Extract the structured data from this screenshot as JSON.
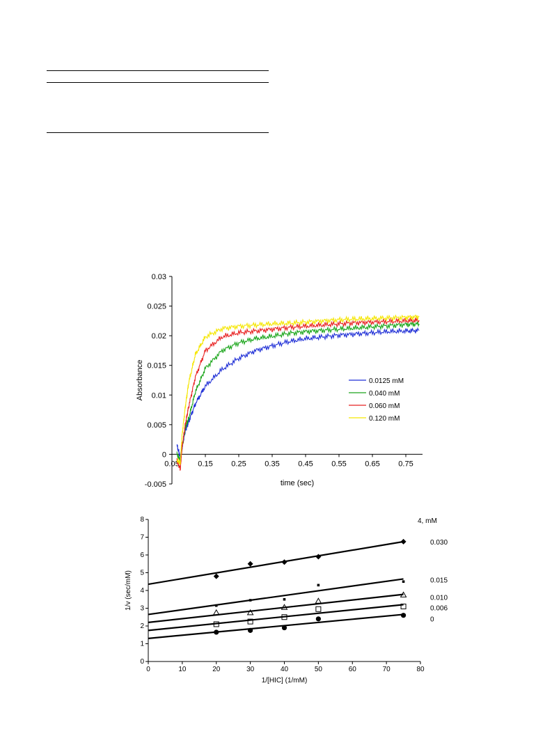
{
  "chart_data": [
    {
      "type": "line",
      "title": "",
      "xlabel": "time (sec)",
      "ylabel": "Absorbance",
      "xlim": [
        0.05,
        0.8
      ],
      "ylim": [
        -0.005,
        0.03
      ],
      "x_ticks": [
        "0.05",
        "0.15",
        "0.25",
        "0.35",
        "0.45",
        "0.55",
        "0.65",
        "0.75"
      ],
      "y_ticks": [
        "-0.005",
        "0",
        "0.005",
        "0.01",
        "0.015",
        "0.02",
        "0.025",
        "0.03"
      ],
      "legend_position": "lower-right",
      "series": [
        {
          "name": "0.0125 mM",
          "color": "#1f2fd6",
          "x": [
            0.065,
            0.075,
            0.08,
            0.09,
            0.1,
            0.12,
            0.15,
            0.2,
            0.25,
            0.3,
            0.35,
            0.4,
            0.45,
            0.5,
            0.55,
            0.6,
            0.65,
            0.7,
            0.75,
            0.79
          ],
          "y": [
            0.0015,
            -0.0005,
            0.001,
            0.004,
            0.0055,
            0.0085,
            0.0115,
            0.0143,
            0.0162,
            0.0175,
            0.0183,
            0.019,
            0.0195,
            0.0198,
            0.0201,
            0.0203,
            0.0205,
            0.0207,
            0.0208,
            0.0209
          ]
        },
        {
          "name": "0.040 mM",
          "color": "#1aa51a",
          "x": [
            0.065,
            0.075,
            0.08,
            0.09,
            0.1,
            0.12,
            0.15,
            0.2,
            0.25,
            0.3,
            0.35,
            0.4,
            0.45,
            0.5,
            0.55,
            0.6,
            0.65,
            0.7,
            0.75,
            0.79
          ],
          "y": [
            0.0,
            -0.001,
            0.001,
            0.0045,
            0.006,
            0.0105,
            0.0145,
            0.0175,
            0.0188,
            0.0195,
            0.0199,
            0.0204,
            0.0207,
            0.0209,
            0.0211,
            0.0213,
            0.0215,
            0.0217,
            0.0219,
            0.022
          ]
        },
        {
          "name": "0.060 mM",
          "color": "#e82020",
          "x": [
            0.065,
            0.075,
            0.08,
            0.09,
            0.1,
            0.12,
            0.15,
            0.2,
            0.25,
            0.3,
            0.35,
            0.4,
            0.45,
            0.5,
            0.55,
            0.6,
            0.65,
            0.7,
            0.75,
            0.79
          ],
          "y": [
            -0.001,
            -0.0025,
            0.001,
            0.005,
            0.008,
            0.013,
            0.0175,
            0.0198,
            0.0205,
            0.0208,
            0.0211,
            0.0214,
            0.0216,
            0.0218,
            0.022,
            0.0222,
            0.0223,
            0.0224,
            0.0225,
            0.0226
          ]
        },
        {
          "name": "0.120 mM",
          "color": "#f5e600",
          "x": [
            0.065,
            0.075,
            0.08,
            0.09,
            0.1,
            0.12,
            0.15,
            0.2,
            0.25,
            0.3,
            0.35,
            0.4,
            0.45,
            0.5,
            0.55,
            0.6,
            0.65,
            0.7,
            0.75,
            0.79
          ],
          "y": [
            -0.001,
            -0.0015,
            0.003,
            0.008,
            0.012,
            0.0168,
            0.0198,
            0.0212,
            0.0216,
            0.0218,
            0.022,
            0.0221,
            0.0223,
            0.0225,
            0.0227,
            0.0228,
            0.0229,
            0.023,
            0.0231,
            0.0232
          ]
        }
      ]
    },
    {
      "type": "scatter",
      "title": "",
      "xlabel": "1/[HIC] (1/mM)",
      "ylabel": "1/v (sec/mM)",
      "xlim": [
        0,
        80
      ],
      "ylim": [
        0,
        8
      ],
      "x_ticks": [
        "0",
        "10",
        "20",
        "30",
        "40",
        "50",
        "60",
        "70",
        "80"
      ],
      "y_ticks": [
        "0",
        "1",
        "2",
        "3",
        "4",
        "5",
        "6",
        "7",
        "8"
      ],
      "legend_title": "4, mM",
      "series": [
        {
          "name": "0.030",
          "marker": "diamond",
          "x": [
            20,
            30,
            40,
            50,
            75
          ],
          "y": [
            4.8,
            5.5,
            5.6,
            5.9,
            6.75
          ],
          "fit": [
            4.35,
            6.75
          ]
        },
        {
          "name": "0.015",
          "marker": "dot",
          "x": [
            20,
            30,
            40,
            50,
            75
          ],
          "y": [
            3.15,
            3.45,
            3.5,
            4.3,
            4.5
          ],
          "fit": [
            2.65,
            4.65
          ]
        },
        {
          "name": "0.010",
          "marker": "triangle",
          "x": [
            20,
            30,
            40,
            50,
            75
          ],
          "y": [
            2.75,
            2.75,
            3.05,
            3.4,
            3.75
          ],
          "fit": [
            2.2,
            3.78
          ]
        },
        {
          "name": "0.006",
          "marker": "square",
          "x": [
            20,
            30,
            40,
            50,
            75
          ],
          "y": [
            2.1,
            2.25,
            2.5,
            2.95,
            3.1
          ],
          "fit": [
            1.75,
            3.2
          ]
        },
        {
          "name": "0",
          "marker": "circle",
          "x": [
            20,
            30,
            40,
            50,
            75
          ],
          "y": [
            1.65,
            1.75,
            1.9,
            2.4,
            2.6
          ],
          "fit": [
            1.3,
            2.65
          ]
        }
      ]
    }
  ]
}
